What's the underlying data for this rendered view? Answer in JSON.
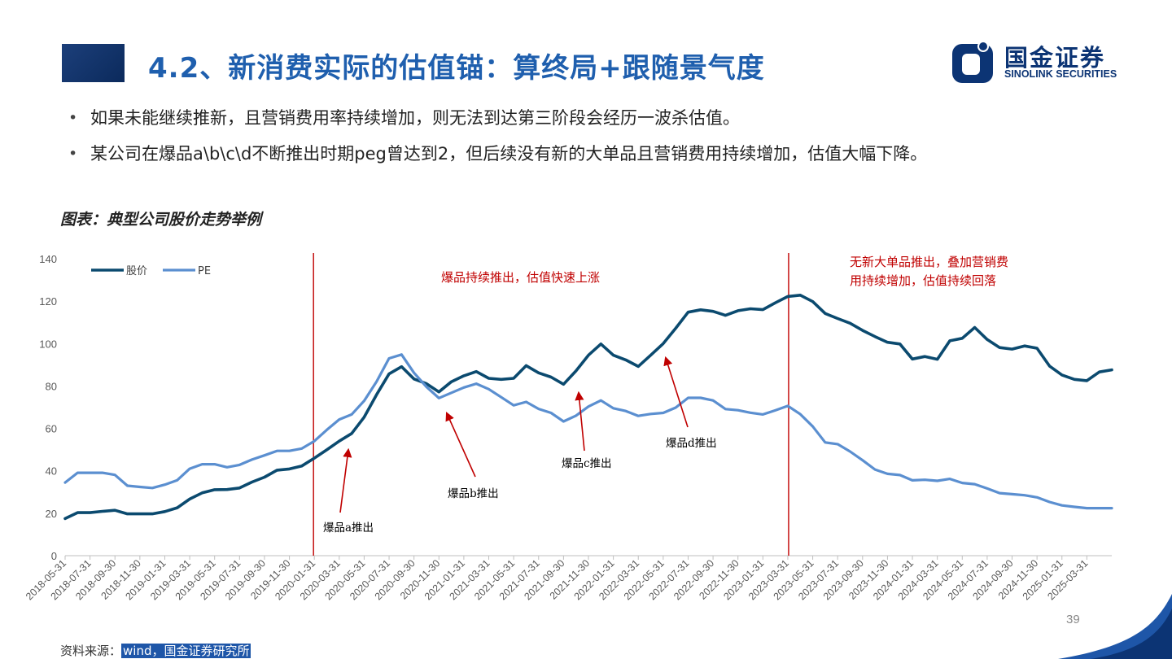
{
  "header": {
    "title": "4.2、新消费实际的估值锚：算终局+跟随景气度"
  },
  "logo": {
    "name_cn": "国金证券",
    "name_en": "SINOLINK SECURITIES"
  },
  "bullets": [
    "如果未能继续推新，且营销费用率持续增加，则无法到达第三阶段会经历一波杀估值。",
    "某公司在爆品a\\b\\c\\d不断推出时期peg曾达到2，但后续没有新的大单品且营销费用持续增加，估值大幅下降。"
  ],
  "chart_title": "图表：典型公司股价走势举例",
  "source": {
    "prefix": "资料来源：",
    "highlight": "wind，国金证券研究所"
  },
  "page_number": "39",
  "colors": {
    "price": "#0b4a6f",
    "pe": "#5b8fd0",
    "annotation": "#c00000",
    "title": "#1f5fae",
    "brand": "#0c3474"
  },
  "chart_data": {
    "type": "line",
    "ylim": [
      0,
      140
    ],
    "yticks": [
      0,
      20,
      40,
      60,
      80,
      100,
      120,
      140
    ],
    "legend_position": "top-left",
    "x": [
      "2018-05-31",
      "2018-06-30",
      "2018-07-31",
      "2018-08-31",
      "2018-09-30",
      "2018-10-31",
      "2018-11-30",
      "2018-12-31",
      "2019-01-31",
      "2019-02-28",
      "2019-03-31",
      "2019-04-30",
      "2019-05-31",
      "2019-06-30",
      "2019-07-31",
      "2019-08-31",
      "2019-09-30",
      "2019-10-31",
      "2019-11-30",
      "2019-12-31",
      "2020-01-31",
      "2020-02-29",
      "2020-03-31",
      "2020-04-30",
      "2020-05-31",
      "2020-06-30",
      "2020-07-31",
      "2020-08-31",
      "2020-09-30",
      "2020-10-31",
      "2020-11-30",
      "2020-12-31",
      "2021-01-31",
      "2021-02-28",
      "2021-03-31",
      "2021-04-30",
      "2021-05-31",
      "2021-06-30",
      "2021-07-31",
      "2021-08-31",
      "2021-09-30",
      "2021-10-31",
      "2021-11-30",
      "2021-12-31",
      "2022-01-31",
      "2022-02-28",
      "2022-03-31",
      "2022-04-30",
      "2022-05-31",
      "2022-06-30",
      "2022-07-31",
      "2022-08-31",
      "2022-09-30",
      "2022-10-31",
      "2022-11-30",
      "2022-12-31",
      "2023-01-31",
      "2023-02-28",
      "2023-03-31",
      "2023-04-30",
      "2023-05-31",
      "2023-06-30",
      "2023-07-31",
      "2023-08-31",
      "2023-09-30",
      "2023-10-31",
      "2023-11-30",
      "2023-12-31",
      "2024-01-31",
      "2024-02-29",
      "2024-03-31",
      "2024-04-30",
      "2024-05-31",
      "2024-06-30",
      "2024-07-31",
      "2024-08-31",
      "2024-09-30",
      "2024-10-31",
      "2024-11-30",
      "2024-12-31",
      "2025-01-31",
      "2025-02-28",
      "2025-03-31",
      "2025-04-30",
      "2025-05-31"
    ],
    "tick_labels": [
      "2018-05-31",
      "2018-07-31",
      "2018-09-30",
      "2018-11-30",
      "2019-01-31",
      "2019-03-31",
      "2019-05-31",
      "2019-07-31",
      "2019-09-30",
      "2019-11-30",
      "2020-01-31",
      "2020-03-31",
      "2020-05-31",
      "2020-07-31",
      "2020-09-30",
      "2020-11-30",
      "2021-01-31",
      "2021-03-31",
      "2021-05-31",
      "2021-07-31",
      "2021-09-30",
      "2021-11-30",
      "2022-01-31",
      "2022-03-31",
      "2022-05-31",
      "2022-07-31",
      "2022-09-30",
      "2022-11-30",
      "2023-01-31",
      "2023-03-31",
      "2023-05-31",
      "2023-07-31",
      "2023-09-30",
      "2023-11-30",
      "2024-01-31",
      "2024-03-31",
      "2024-05-31",
      "2024-07-31",
      "2024-09-30",
      "2024-11-30",
      "2025-01-31",
      "2025-03-31"
    ],
    "series": [
      {
        "name": "股价",
        "values": [
          17.5,
          20.3,
          20.3,
          20.9,
          21.4,
          19.7,
          19.7,
          19.7,
          20.8,
          22.6,
          26.7,
          29.6,
          31.1,
          31.2,
          31.9,
          34.7,
          37.0,
          40.3,
          40.9,
          42.3,
          46.0,
          49.9,
          54.0,
          57.6,
          65.3,
          75.9,
          85.7,
          89.1,
          83.3,
          81.1,
          77.2,
          82.0,
          84.8,
          86.8,
          83.6,
          83.1,
          83.6,
          89.6,
          86.2,
          84.2,
          80.8,
          87.1,
          94.5,
          99.8,
          94.5,
          92.3,
          89.2,
          94.5,
          100.0,
          107.2,
          114.8,
          115.9,
          115.2,
          113.3,
          115.5,
          116.4,
          116.0,
          119.2,
          122.2,
          122.8,
          119.8,
          114.2,
          111.8,
          109.6,
          106.2,
          103.3,
          100.6,
          99.8,
          92.7,
          93.9,
          92.6,
          101.3,
          102.5,
          107.6,
          101.9,
          98.1,
          97.4,
          98.9,
          97.8,
          89.4,
          85.2,
          83.1,
          82.5,
          86.6,
          87.6
        ]
      },
      {
        "name": "PE",
        "values": [
          34.5,
          39.1,
          39.1,
          39.1,
          38.1,
          33.0,
          32.4,
          31.9,
          33.5,
          35.6,
          41.0,
          43.1,
          43.1,
          41.7,
          42.8,
          45.3,
          47.3,
          49.4,
          49.4,
          50.5,
          54.0,
          59.3,
          64.2,
          66.6,
          73.0,
          82.1,
          93.0,
          94.8,
          86.2,
          79.6,
          74.3,
          76.8,
          79.3,
          81.1,
          78.5,
          74.7,
          70.9,
          72.5,
          69.2,
          67.3,
          63.3,
          66.0,
          70.3,
          73.2,
          69.5,
          68.2,
          65.9,
          66.8,
          67.3,
          69.8,
          74.4,
          74.4,
          73.2,
          69.1,
          68.6,
          67.4,
          66.6,
          68.5,
          70.6,
          66.7,
          60.9,
          53.4,
          52.6,
          49.1,
          45.0,
          40.6,
          38.6,
          38.0,
          35.5,
          35.8,
          35.3,
          36.2,
          34.3,
          33.7,
          31.7,
          29.5,
          29.0,
          28.5,
          27.5,
          25.3,
          23.7,
          23.0,
          22.4,
          22.4,
          22.4
        ]
      }
    ],
    "vlines": [
      "2020-01-31",
      "2023-03-31"
    ],
    "annotations": [
      {
        "text": "爆品持续推出，估值快速上涨"
      },
      {
        "text": "无新大单品推出，叠加营销费用持续增加，估值持续回落"
      },
      {
        "text": "爆品a推出"
      },
      {
        "text": "爆品b推出"
      },
      {
        "text": "爆品c推出"
      },
      {
        "text": "爆品d推出"
      }
    ]
  }
}
